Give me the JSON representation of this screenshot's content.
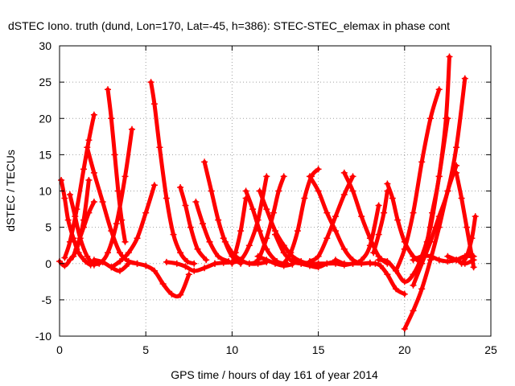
{
  "chart_data": {
    "type": "scatter",
    "title": "dSTEC Iono. truth (dund, Lon=170, Lat=-45, h=386): STEC-STEC_elemax in phase cont",
    "xlabel": "GPS time / hours of day 161 of year 2014",
    "ylabel": "dSTEC  / TECUs",
    "xlim": [
      0,
      25
    ],
    "ylim": [
      -10,
      30
    ],
    "xticks": [
      0,
      5,
      10,
      15,
      20,
      25
    ],
    "yticks": [
      -10,
      -5,
      0,
      5,
      10,
      15,
      20,
      25,
      30
    ],
    "grid": true,
    "legend": "none",
    "marker": "plus",
    "color": "#ff0000",
    "series": [
      {
        "x": [
          0.0,
          0.3,
          0.6,
          1.0,
          1.4,
          1.7
        ],
        "y": [
          0.3,
          -0.3,
          0.5,
          2.0,
          6.0,
          11.5
        ]
      },
      {
        "x": [
          0.1,
          0.3,
          0.5,
          0.8,
          1.1,
          1.5,
          1.8
        ],
        "y": [
          11.5,
          9.0,
          6.0,
          3.5,
          1.5,
          0.3,
          -0.2
        ]
      },
      {
        "x": [
          0.3,
          0.6,
          1.0,
          1.4,
          1.7,
          2.0
        ],
        "y": [
          0.8,
          3.0,
          7.5,
          13.0,
          17.0,
          20.5
        ]
      },
      {
        "x": [
          0.6,
          0.9,
          1.2,
          1.6,
          2.0
        ],
        "y": [
          9.5,
          6.5,
          3.5,
          1.0,
          -0.2
        ]
      },
      {
        "x": [
          0.8,
          1.1,
          1.4,
          1.7,
          2.0
        ],
        "y": [
          1.0,
          3.0,
          5.0,
          7.0,
          8.5
        ]
      },
      {
        "x": [
          1.6,
          2.0,
          2.5,
          3.0,
          3.5,
          4.0,
          4.5
        ],
        "y": [
          16.0,
          12.5,
          8.5,
          4.5,
          1.5,
          0.3,
          0.0
        ]
      },
      {
        "x": [
          1.8,
          2.3,
          2.8,
          3.3,
          3.8,
          4.2
        ],
        "y": [
          0.2,
          0.0,
          1.5,
          5.5,
          12.0,
          18.5
        ]
      },
      {
        "x": [
          2.8,
          3.0,
          3.2,
          3.4,
          3.6,
          3.8
        ],
        "y": [
          24.0,
          20.0,
          15.0,
          10.0,
          6.0,
          3.0
        ]
      },
      {
        "x": [
          2.0,
          2.5,
          3.0,
          3.5,
          4.0
        ],
        "y": [
          0.5,
          0.2,
          -0.5,
          -1.0,
          0.0
        ]
      },
      {
        "x": [
          3.0,
          3.5,
          4.0,
          4.5,
          5.0,
          5.5
        ],
        "y": [
          -0.5,
          0.3,
          1.5,
          3.5,
          7.0,
          10.8
        ]
      },
      {
        "x": [
          5.3,
          5.5,
          5.8,
          6.2,
          6.6,
          7.0,
          7.4,
          7.8
        ],
        "y": [
          25.0,
          22.0,
          16.0,
          9.0,
          4.0,
          1.5,
          0.3,
          0.0
        ]
      },
      {
        "x": [
          4.0,
          4.5,
          5.0,
          5.5,
          6.0,
          6.5,
          7.0,
          7.5
        ],
        "y": [
          0.3,
          0.0,
          -0.3,
          -1.0,
          -2.8,
          -4.2,
          -4.3,
          -1.5
        ]
      },
      {
        "x": [
          7.0,
          7.3,
          7.6,
          8.0,
          8.5
        ],
        "y": [
          10.5,
          8.0,
          5.0,
          2.0,
          0.5
        ]
      },
      {
        "x": [
          6.2,
          6.8,
          7.3,
          7.8,
          8.4,
          9.0
        ],
        "y": [
          0.2,
          0.0,
          -0.4,
          -1.0,
          -0.6,
          0.0
        ]
      },
      {
        "x": [
          7.9,
          8.3,
          8.7,
          9.2,
          9.8
        ],
        "y": [
          8.5,
          5.5,
          3.0,
          1.0,
          0.3
        ]
      },
      {
        "x": [
          8.4,
          8.8,
          9.2,
          9.6,
          10.0,
          10.5
        ],
        "y": [
          14.0,
          10.0,
          6.0,
          3.0,
          1.0,
          0.0
        ]
      },
      {
        "x": [
          9.0,
          9.5,
          10.0,
          10.5,
          11.0,
          11.5,
          12.0
        ],
        "y": [
          0.0,
          0.1,
          0.2,
          0.5,
          2.5,
          6.0,
          12.0
        ]
      },
      {
        "x": [
          9.5,
          10.0,
          10.5,
          11.0,
          11.5,
          12.0
        ],
        "y": [
          3.5,
          1.5,
          0.5,
          0.0,
          0.0,
          0.2
        ]
      },
      {
        "x": [
          10.0,
          10.2,
          10.5,
          10.8
        ],
        "y": [
          0.0,
          1.5,
          4.5,
          9.0
        ]
      },
      {
        "x": [
          10.8,
          11.2,
          11.6,
          12.0,
          12.6,
          13.2
        ],
        "y": [
          10.0,
          7.5,
          4.5,
          2.0,
          0.3,
          0.0
        ]
      },
      {
        "x": [
          11.0,
          11.5,
          12.0,
          12.4,
          12.7,
          13.0
        ],
        "y": [
          0.0,
          0.5,
          3.5,
          7.0,
          10.0,
          12.0
        ]
      },
      {
        "x": [
          11.5,
          12.0,
          12.5,
          13.0,
          13.5
        ],
        "y": [
          1.0,
          0.5,
          0.0,
          -0.3,
          -0.1
        ]
      },
      {
        "x": [
          11.6,
          12.0,
          12.5,
          13.0,
          13.5,
          14.0,
          14.5,
          15.0
        ],
        "y": [
          10.0,
          7.5,
          4.5,
          2.5,
          1.0,
          0.3,
          0.0,
          0.0
        ]
      },
      {
        "x": [
          12.5,
          13.0,
          13.5,
          14.0,
          14.5
        ],
        "y": [
          4.0,
          1.5,
          0.3,
          0.0,
          0.0
        ]
      },
      {
        "x": [
          13.0,
          13.4,
          13.8,
          14.2,
          14.6,
          15.0
        ],
        "y": [
          0.0,
          1.5,
          4.5,
          9.0,
          12.0,
          13.0
        ]
      },
      {
        "x": [
          13.5,
          14.0,
          14.5,
          15.0,
          15.5,
          16.0
        ],
        "y": [
          0.5,
          0.0,
          -0.3,
          -0.5,
          0.0,
          0.3
        ]
      },
      {
        "x": [
          14.5,
          15.0,
          15.5,
          16.0,
          16.5,
          17.0,
          17.5
        ],
        "y": [
          12.0,
          10.0,
          7.0,
          4.5,
          2.0,
          0.5,
          0.0
        ]
      },
      {
        "x": [
          14.5,
          15.0,
          15.5,
          16.0,
          16.5,
          17.0
        ],
        "y": [
          0.3,
          1.0,
          3.5,
          6.5,
          9.5,
          12.0
        ]
      },
      {
        "x": [
          15.0,
          15.5,
          16.0,
          16.5,
          17.0,
          17.5,
          18.0
        ],
        "y": [
          0.0,
          0.0,
          0.0,
          -0.2,
          0.0,
          0.0,
          0.1
        ]
      },
      {
        "x": [
          16.5,
          17.0,
          17.5,
          18.0,
          18.5,
          19.0
        ],
        "y": [
          12.5,
          10.0,
          6.5,
          3.5,
          1.0,
          0.0
        ]
      },
      {
        "x": [
          16.0,
          16.5,
          17.0,
          17.5,
          18.0,
          18.5
        ],
        "y": [
          0.5,
          0.0,
          0.0,
          0.5,
          2.5,
          8.0
        ]
      },
      {
        "x": [
          18.0,
          18.3,
          18.6,
          19.0,
          19.5,
          20.0
        ],
        "y": [
          0.0,
          0.0,
          -0.3,
          -1.5,
          -3.5,
          -4.2
        ]
      },
      {
        "x": [
          18.2,
          18.5,
          18.8,
          19.0
        ],
        "y": [
          1.5,
          4.0,
          7.0,
          10.0
        ]
      },
      {
        "x": [
          19.0,
          19.3,
          19.6,
          20.0,
          20.5,
          21.0
        ],
        "y": [
          11.0,
          9.0,
          6.0,
          3.0,
          1.0,
          0.0
        ]
      },
      {
        "x": [
          18.5,
          19.0,
          19.5,
          20.0,
          20.5,
          21.0,
          21.5,
          22.0,
          22.5
        ],
        "y": [
          0.5,
          0.3,
          -1.0,
          -2.5,
          -1.5,
          1.0,
          5.0,
          12.0,
          20.0
        ]
      },
      {
        "x": [
          20.0,
          20.5,
          21.0,
          21.5,
          22.0,
          22.5,
          23.0
        ],
        "y": [
          -9.0,
          -6.5,
          -3.5,
          0.5,
          5.0,
          10.0,
          13.5
        ]
      },
      {
        "x": [
          20.5,
          21.0,
          21.5,
          22.0,
          22.5,
          23.0,
          23.5
        ],
        "y": [
          -3.0,
          0.0,
          3.0,
          6.5,
          10.0,
          16.0,
          25.5
        ]
      },
      {
        "x": [
          19.5,
          20.0,
          20.5,
          21.0,
          21.5,
          22.0
        ],
        "y": [
          -1.0,
          2.0,
          7.0,
          14.0,
          20.0,
          24.0
        ]
      },
      {
        "x": [
          21.0,
          21.3,
          21.6,
          22.0,
          22.4,
          22.6
        ],
        "y": [
          1.0,
          3.0,
          7.0,
          12.0,
          20.0,
          28.5
        ]
      },
      {
        "x": [
          20.5,
          21.0,
          21.5,
          22.0,
          22.5,
          23.0,
          23.5,
          24.0
        ],
        "y": [
          0.5,
          1.0,
          1.0,
          0.5,
          0.3,
          0.5,
          1.0,
          1.0
        ]
      },
      {
        "x": [
          23.0,
          23.3,
          23.6,
          23.9,
          24.0
        ],
        "y": [
          12.5,
          9.0,
          5.0,
          1.0,
          -0.5
        ]
      },
      {
        "x": [
          23.3,
          23.6,
          23.9,
          24.1
        ],
        "y": [
          0.0,
          1.0,
          3.5,
          6.5
        ]
      },
      {
        "x": [
          22.5,
          23.0,
          23.5,
          24.0
        ],
        "y": [
          1.0,
          0.5,
          0.0,
          0.5
        ]
      }
    ]
  }
}
